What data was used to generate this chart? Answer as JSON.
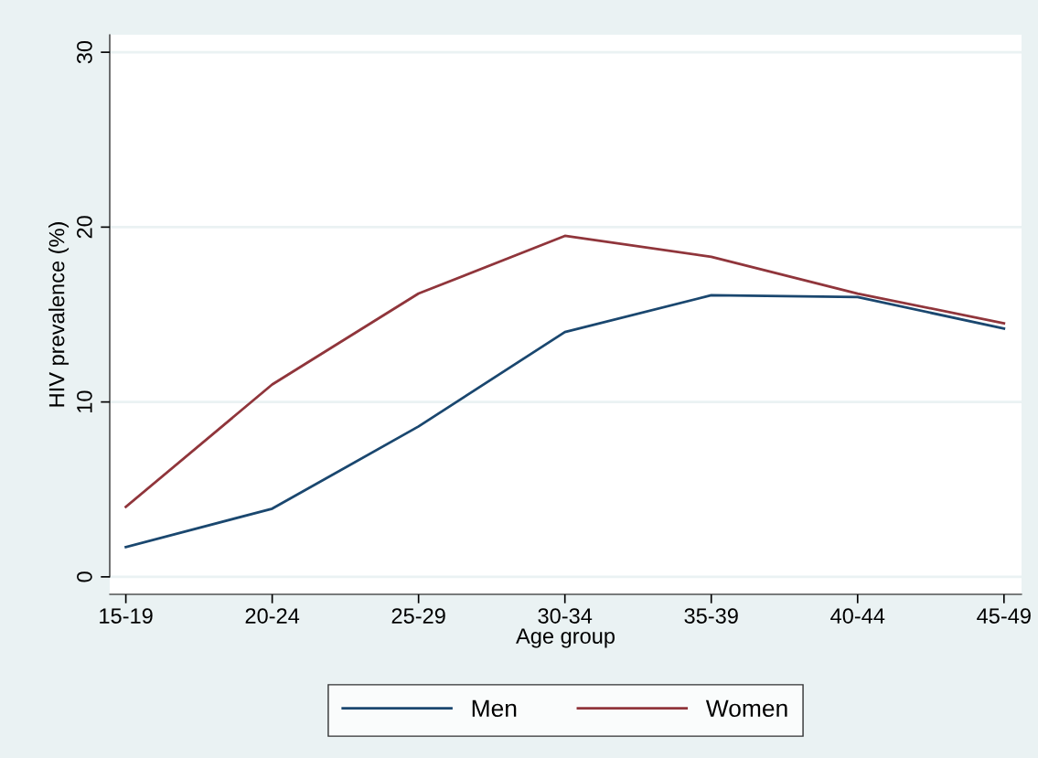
{
  "chart_data": {
    "type": "line",
    "xlabel": "Age group",
    "ylabel": "HIV prevalence (%)",
    "categories": [
      "15-19",
      "20-24",
      "25-29",
      "30-34",
      "35-39",
      "40-44",
      "45-49"
    ],
    "series": [
      {
        "name": "Men",
        "color": "#1a476f",
        "values": [
          1.7,
          3.9,
          8.6,
          14.0,
          16.1,
          16.0,
          14.2
        ]
      },
      {
        "name": "Women",
        "color": "#90353b",
        "values": [
          4.0,
          11.0,
          16.2,
          19.5,
          18.3,
          16.2,
          14.5
        ]
      }
    ],
    "ylim": [
      -1,
      31
    ],
    "yticks": [
      0,
      10,
      20,
      30
    ],
    "grid": "y",
    "legend": "bottom",
    "line_style": "solid",
    "marker": "none"
  }
}
